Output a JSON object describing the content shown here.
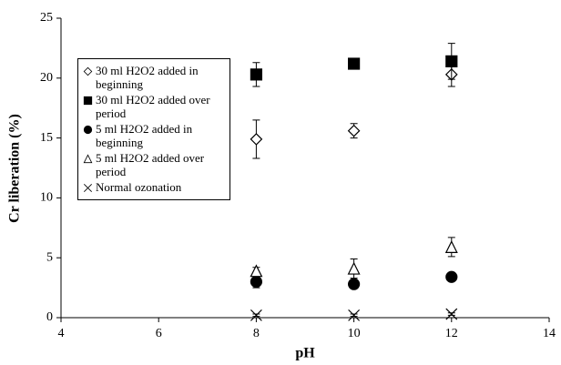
{
  "chart_data": {
    "type": "scatter",
    "xlabel": "pH",
    "ylabel": "Cr liberation (%)",
    "xlim": [
      4,
      14
    ],
    "xticks": [
      4,
      6,
      8,
      10,
      12,
      14
    ],
    "ylim": [
      0,
      25
    ],
    "yticks": [
      0,
      5,
      10,
      15,
      20,
      25
    ],
    "x": [
      8,
      10,
      12
    ],
    "series": [
      {
        "name": "30 ml H2O2 added in beginning",
        "marker": "diamond-open",
        "color": "#000000",
        "values": [
          14.9,
          15.6,
          20.3
        ],
        "errors": [
          1.6,
          0.6,
          1.0
        ]
      },
      {
        "name": "30 ml H2O2 added over period",
        "marker": "square-filled",
        "color": "#000000",
        "values": [
          20.3,
          21.2,
          21.4
        ],
        "errors": [
          1.0,
          0.2,
          1.5
        ]
      },
      {
        "name": "5 ml H2O2 added in beginning",
        "marker": "circle-filled",
        "color": "#000000",
        "values": [
          3.0,
          2.8,
          3.4
        ],
        "errors": [
          0.5,
          0.2,
          0.2
        ]
      },
      {
        "name": "5 ml H2O2 added over period",
        "marker": "triangle-open",
        "color": "#000000",
        "values": [
          3.9,
          4.1,
          5.9
        ],
        "errors": [
          0.3,
          0.8,
          0.8
        ]
      },
      {
        "name": "Normal ozonation",
        "marker": "cross",
        "color": "#000000",
        "values": [
          0.2,
          0.2,
          0.3
        ],
        "errors": [
          0.1,
          0.1,
          0.1
        ]
      }
    ]
  }
}
